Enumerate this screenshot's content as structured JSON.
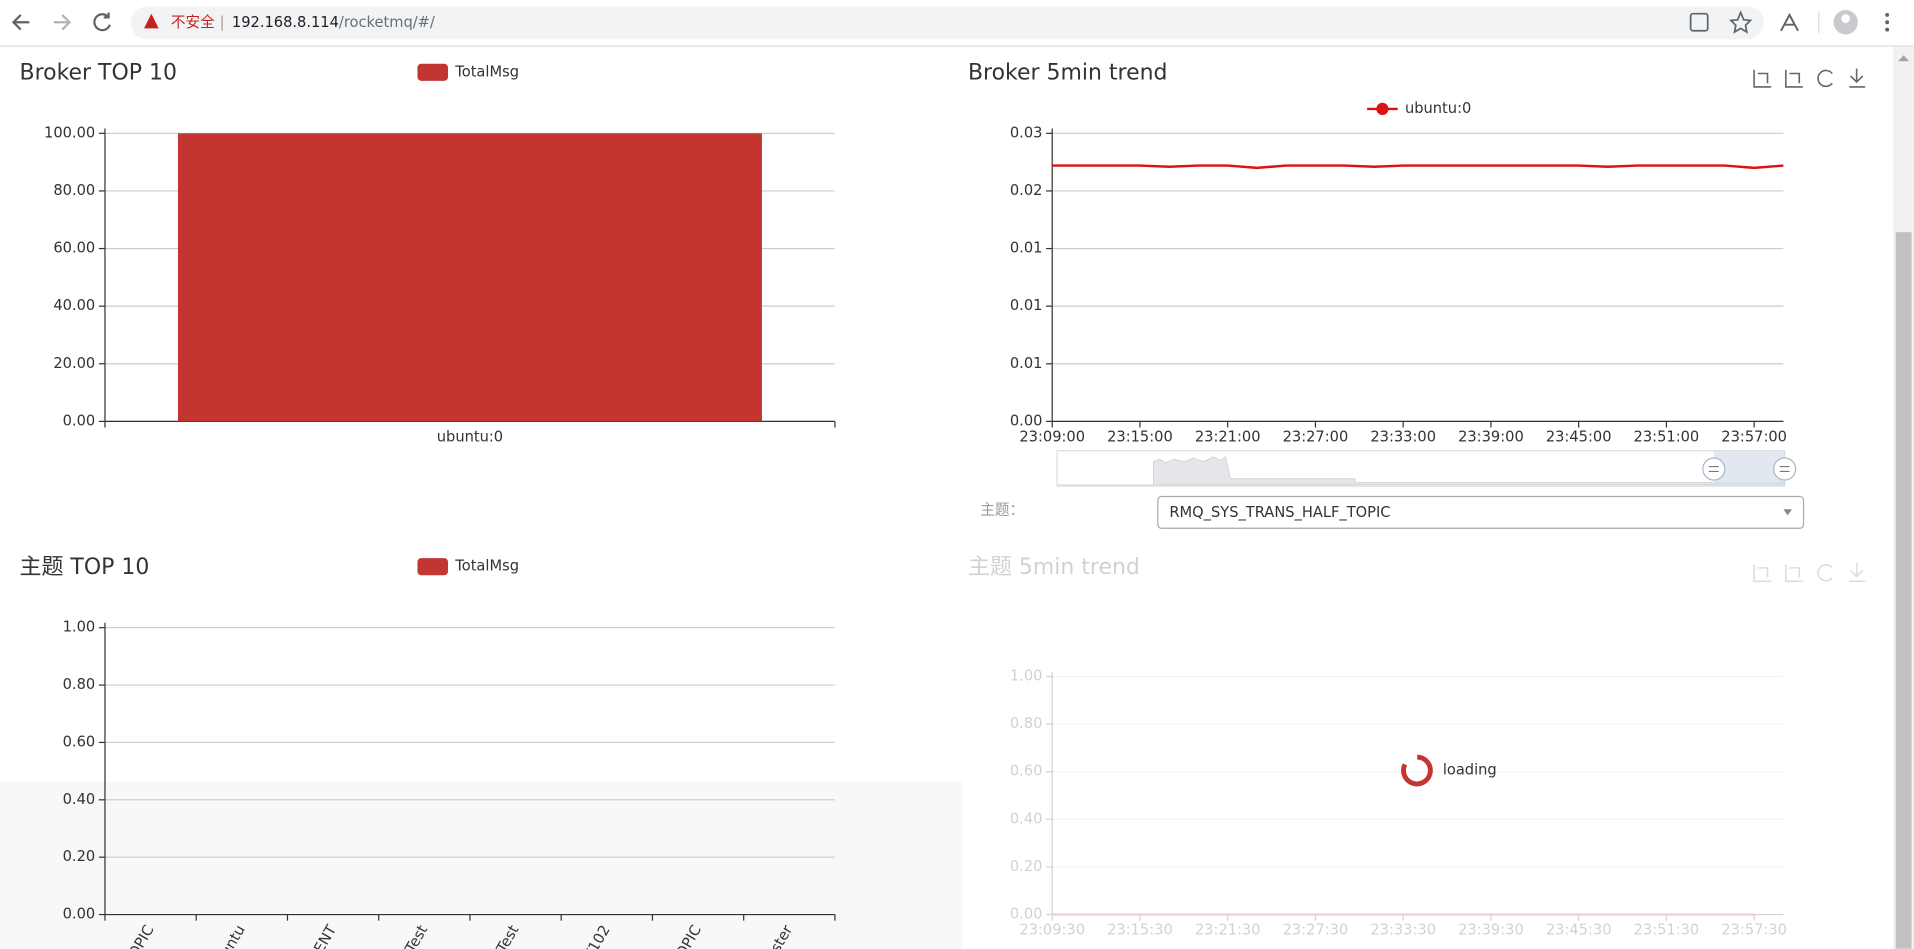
{
  "browser": {
    "security": "不安全",
    "url_host": "192.168.8.114",
    "url_path": "/rocketmq/#/"
  },
  "topic_select": {
    "label": "主题：",
    "value": "RMQ_SYS_TRANS_HALF_TOPIC"
  },
  "chart_data": [
    {
      "type": "bar",
      "title": "Broker TOP 10",
      "categories": [
        "ubuntu:0"
      ],
      "series": [
        {
          "name": "TotalMsg",
          "color": "#c23531",
          "values": [
            100
          ]
        }
      ],
      "ylim": [
        0,
        100
      ],
      "yticks": [
        {
          "value": 0,
          "label": "0.00"
        },
        {
          "value": 20,
          "label": "20.00"
        },
        {
          "value": 40,
          "label": "40.00"
        },
        {
          "value": 60,
          "label": "60.00"
        },
        {
          "value": 80,
          "label": "80.00"
        },
        {
          "value": 100,
          "label": "100.00"
        }
      ],
      "grid": true
    },
    {
      "type": "line",
      "title": "Broker 5min trend",
      "x": [
        "23:09:00",
        "23:11:00",
        "23:13:00",
        "23:15:00",
        "23:17:00",
        "23:19:00",
        "23:21:00",
        "23:23:00",
        "23:25:00",
        "23:27:00",
        "23:29:00",
        "23:31:00",
        "23:33:00",
        "23:35:00",
        "23:37:00",
        "23:39:00",
        "23:41:00",
        "23:43:00",
        "23:45:00",
        "23:47:00",
        "23:49:00",
        "23:51:00",
        "23:53:00",
        "23:55:00",
        "23:57:00",
        "23:59:00"
      ],
      "series": [
        {
          "name": "ubuntu:0",
          "color": "#dd1111",
          "values": [
            0.0222,
            0.0222,
            0.0222,
            0.0222,
            0.0221,
            0.0222,
            0.0222,
            0.022,
            0.0222,
            0.0222,
            0.0222,
            0.0221,
            0.0222,
            0.0222,
            0.0222,
            0.0222,
            0.0222,
            0.0222,
            0.0222,
            0.0221,
            0.0222,
            0.0222,
            0.0222,
            0.0222,
            0.022,
            0.0222
          ]
        }
      ],
      "xlim": [
        "23:09:00",
        "23:59:00"
      ],
      "xticks": [
        "23:09:00",
        "23:15:00",
        "23:21:00",
        "23:27:00",
        "23:33:00",
        "23:39:00",
        "23:45:00",
        "23:51:00",
        "23:57:00"
      ],
      "ylim": [
        0,
        0.025
      ],
      "yticks": [
        {
          "value": 0,
          "label": "0.00"
        },
        {
          "value": 0.005,
          "label": "0.01"
        },
        {
          "value": 0.01,
          "label": "0.01"
        },
        {
          "value": 0.015,
          "label": "0.01"
        },
        {
          "value": 0.02,
          "label": "0.02"
        },
        {
          "value": 0.025,
          "label": "0.03"
        }
      ],
      "grid": true
    },
    {
      "type": "bar",
      "title": "主题 TOP 10",
      "categories": [
        "OPIC",
        "untu",
        "ENT",
        "Test",
        "Test",
        "/102",
        "OPIC",
        "ster"
      ],
      "series": [
        {
          "name": "TotalMsg",
          "color": "#c23531",
          "values": [
            0,
            0,
            0,
            0,
            0,
            0,
            0,
            0
          ]
        }
      ],
      "ylim": [
        0,
        1
      ],
      "yticks": [
        {
          "value": 0,
          "label": "0.00"
        },
        {
          "value": 0.2,
          "label": "0.20"
        },
        {
          "value": 0.4,
          "label": "0.40"
        },
        {
          "value": 0.6,
          "label": "0.60"
        },
        {
          "value": 0.8,
          "label": "0.80"
        },
        {
          "value": 1,
          "label": "1.00"
        }
      ],
      "grid": true
    },
    {
      "type": "line",
      "title": "主题 5min trend",
      "loading_text": "loading",
      "x": [
        "23:09:30",
        "23:15:30",
        "23:21:30",
        "23:27:30",
        "23:33:30",
        "23:39:30",
        "23:45:30",
        "23:51:30",
        "23:57:30"
      ],
      "values": [
        0,
        0,
        0,
        0,
        0,
        0,
        0,
        0,
        0
      ],
      "color": "#c23531",
      "xlim": [
        "23:09:30",
        "23:59:30"
      ],
      "xticks": [
        "23:09:30",
        "23:15:30",
        "23:21:30",
        "23:27:30",
        "23:33:30",
        "23:39:30",
        "23:45:30",
        "23:51:30",
        "23:57:30"
      ],
      "ylim": [
        0,
        1
      ],
      "yticks": [
        {
          "value": 0,
          "label": "0.00"
        },
        {
          "value": 0.2,
          "label": "0.20"
        },
        {
          "value": 0.4,
          "label": "0.40"
        },
        {
          "value": 0.6,
          "label": "0.60"
        },
        {
          "value": 0.8,
          "label": "0.80"
        },
        {
          "value": 1,
          "label": "1.00"
        }
      ],
      "grid": true
    }
  ]
}
